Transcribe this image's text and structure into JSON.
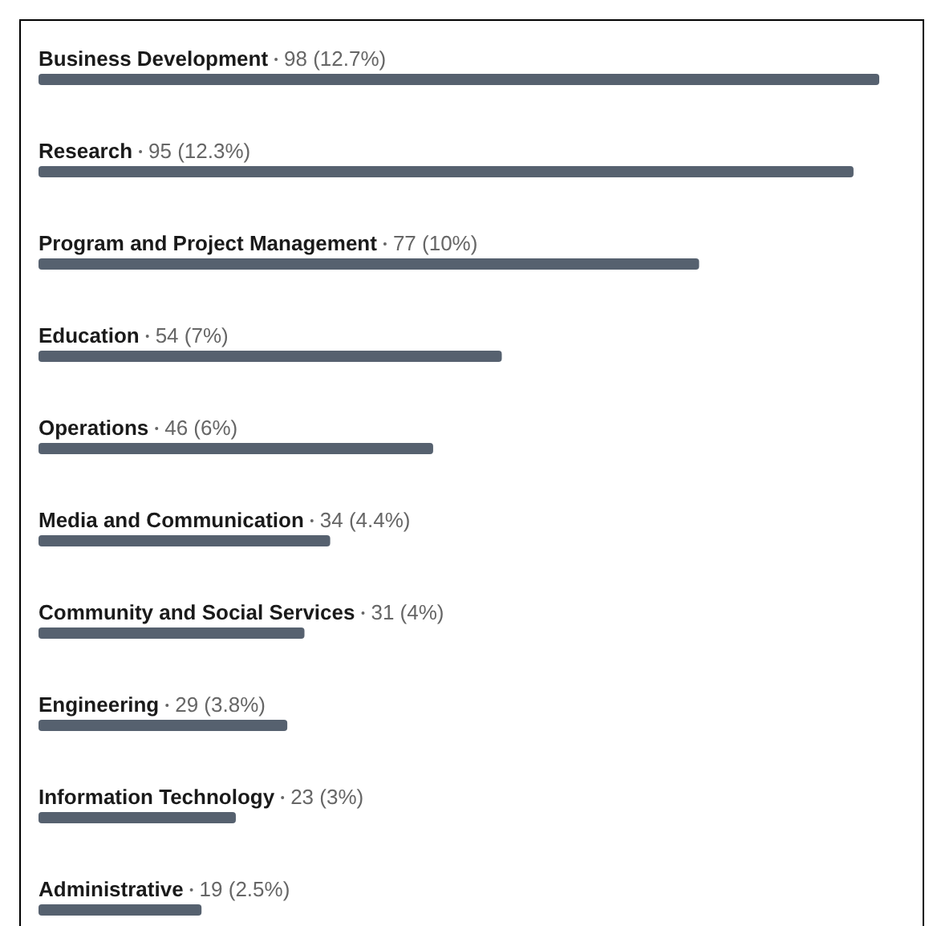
{
  "chart_data": {
    "type": "bar",
    "orientation": "horizontal",
    "color": "#56616f",
    "categories": [
      "Business Development",
      "Research",
      "Program and Project Management",
      "Education",
      "Operations",
      "Media and Communication",
      "Community and Social Services",
      "Engineering",
      "Information Technology",
      "Administrative"
    ],
    "values": [
      98,
      95,
      77,
      54,
      46,
      34,
      31,
      29,
      23,
      19
    ],
    "value_labels": [
      "98 (12.7%)",
      "95 (12.3%)",
      "77 (10%)",
      "54 (7%)",
      "46 (6%)",
      "34 (4.4%)",
      "31 (4%)",
      "29 (3.8%)",
      "23 (3%)",
      "19 (2.5%)"
    ]
  }
}
